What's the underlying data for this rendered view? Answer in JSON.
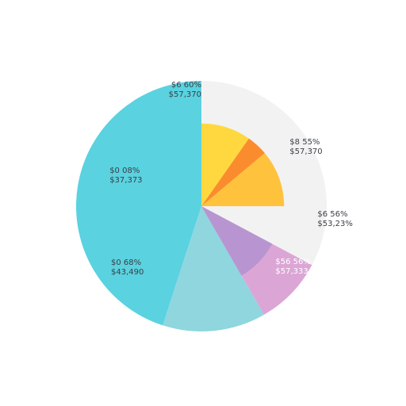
{
  "chart_data": {
    "type": "pie",
    "title": "",
    "legend": "none",
    "colors": {
      "background_slice": "#f2f2f2",
      "cyan": "#5ad2e0",
      "teal_light": "#8fd6df",
      "lavender": "#dba6d6",
      "purple": "#b895d0",
      "yellow": "#ffd83f",
      "orange": "#fb8c2e",
      "amber": "#ffc23c"
    },
    "slices": [
      {
        "color": "#5ad2e0",
        "start_deg": 198,
        "end_deg": 360,
        "outer": 1.0
      },
      {
        "color": "#8fd6df",
        "start_deg": 150,
        "end_deg": 198,
        "outer": 1.0
      },
      {
        "color": "#dba6d6",
        "start_deg": 118,
        "end_deg": 150,
        "outer": 1.0
      },
      {
        "color": "#b895d0",
        "start_deg": 90,
        "end_deg": 150,
        "outer": 0.64
      },
      {
        "color": "#f2f2f2",
        "start_deg": 0,
        "end_deg": 118,
        "outer": 1.0
      },
      {
        "color": "#ffc23c",
        "start_deg": 50,
        "end_deg": 90,
        "outer": 0.66
      },
      {
        "color": "#fb8c2e",
        "start_deg": 35,
        "end_deg": 50,
        "outer": 0.66
      },
      {
        "color": "#ffd83f",
        "start_deg": 0,
        "end_deg": 35,
        "outer": 0.66
      }
    ],
    "labels": [
      {
        "lines": [
          "$6 60%",
          "$57,370"
        ],
        "anchor_deg": 0,
        "radius": 0.95,
        "align": "end",
        "light": false
      },
      {
        "lines": [
          "$0 08%",
          "$37,373"
        ],
        "anchor_deg": 290,
        "radius": 0.78,
        "align": "start",
        "light": false
      },
      {
        "lines": [
          "$0 68%",
          "$43,490"
        ],
        "anchor_deg": 237,
        "radius": 0.86,
        "align": "start",
        "light": false
      },
      {
        "lines": [
          "$8 55%",
          "$57,370"
        ],
        "anchor_deg": 55,
        "radius": 0.86,
        "align": "start",
        "light": false
      },
      {
        "lines": [
          "$6 56%",
          "$53,23%"
        ],
        "anchor_deg": 95,
        "radius": 0.93,
        "align": "start",
        "light": false
      },
      {
        "lines": [
          "$56 56%",
          "$57,333"
        ],
        "anchor_deg": 128,
        "radius": 0.75,
        "align": "start",
        "light": true
      }
    ]
  }
}
